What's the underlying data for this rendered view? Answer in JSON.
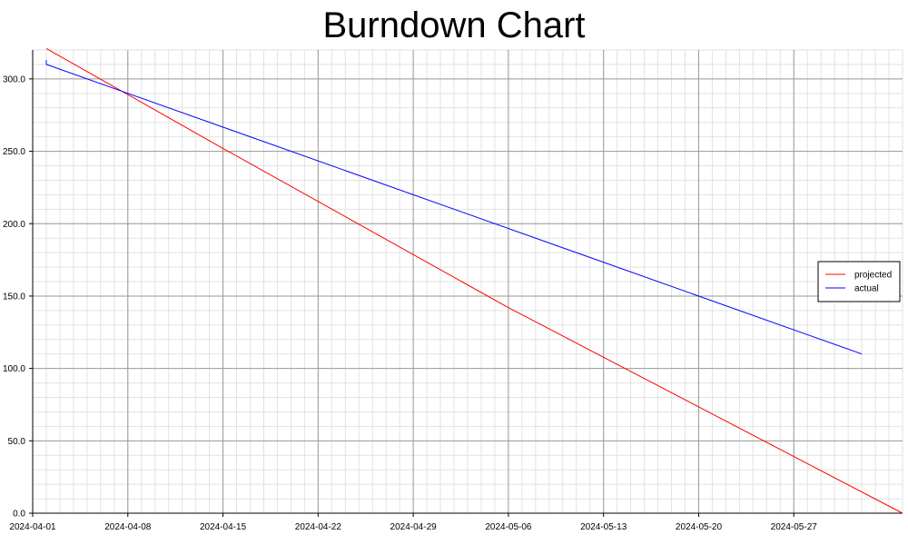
{
  "chart_data": {
    "type": "line",
    "title": "Burndown Chart",
    "xlabel": "",
    "ylabel": "",
    "x_axis_type": "date",
    "xlim": [
      "2024-04-01",
      "2024-06-04"
    ],
    "ylim": [
      0,
      320
    ],
    "x_ticks": [
      "2024-04-01",
      "2024-04-08",
      "2024-04-15",
      "2024-04-22",
      "2024-04-29",
      "2024-05-06",
      "2024-05-13",
      "2024-05-20",
      "2024-05-27"
    ],
    "y_ticks": [
      "0.0",
      "50.0",
      "100.0",
      "150.0",
      "200.0",
      "250.0",
      "300.0"
    ],
    "grid": true,
    "legend_position": "right",
    "series": [
      {
        "name": "projected",
        "color": "#ff0000",
        "points": [
          {
            "x": "2024-04-02",
            "y": 321
          },
          {
            "x": "2024-04-15",
            "y": 252
          },
          {
            "x": "2024-05-06",
            "y": 142
          },
          {
            "x": "2024-06-04",
            "y": 0
          }
        ]
      },
      {
        "name": "actual",
        "color": "#0000ff",
        "points": [
          {
            "x": "2024-04-02",
            "y": 313
          },
          {
            "x": "2024-04-02",
            "y": 310
          },
          {
            "x": "2024-06-01",
            "y": 110
          }
        ]
      }
    ]
  }
}
